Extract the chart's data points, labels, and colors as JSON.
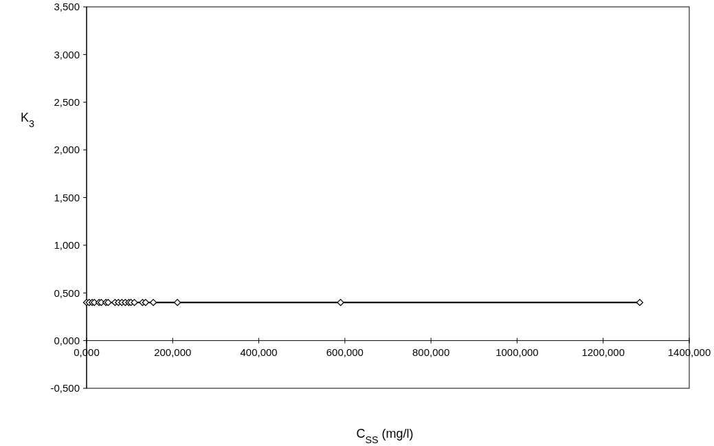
{
  "chart_data": {
    "type": "line",
    "xlabel": "C$_{SS}$ (mg/l)",
    "ylabel": "K$_{3}$",
    "x": [
      0,
      6,
      13,
      18,
      29,
      34,
      45,
      50,
      66,
      74,
      82,
      90,
      98,
      103,
      111,
      130,
      137,
      155,
      211,
      590,
      1285
    ],
    "series": [
      {
        "color": "#000000",
        "values": [
          0.4,
          0.4,
          0.4,
          0.4,
          0.4,
          0.4,
          0.4,
          0.4,
          0.4,
          0.4,
          0.4,
          0.4,
          0.4,
          0.4,
          0.4,
          0.4,
          0.4,
          0.4,
          0.4,
          0.4,
          0.4
        ]
      }
    ],
    "xlim": [
      0,
      1400
    ],
    "ylim": [
      -0.5,
      3.5
    ],
    "xticks": [
      {
        "value": 0,
        "label": "0,000"
      },
      {
        "value": 200,
        "label": "200,000"
      },
      {
        "value": 400,
        "label": "400,000"
      },
      {
        "value": 600,
        "label": "600,000"
      },
      {
        "value": 800,
        "label": "800,000"
      },
      {
        "value": 1000,
        "label": "1000,000"
      },
      {
        "value": 1200,
        "label": "1200,000"
      },
      {
        "value": 1400,
        "label": "1400,000"
      }
    ],
    "yticks": [
      {
        "value": -0.5,
        "label": "-0,500"
      },
      {
        "value": 0,
        "label": "0,000"
      },
      {
        "value": 0.5,
        "label": "0,500"
      },
      {
        "value": 1,
        "label": "1,000"
      },
      {
        "value": 1.5,
        "label": "1,500"
      },
      {
        "value": 2,
        "label": "2,000"
      },
      {
        "value": 2.5,
        "label": "2,500"
      },
      {
        "value": 3,
        "label": "3,000"
      },
      {
        "value": 3.5,
        "label": "3,500"
      }
    ],
    "grid": false,
    "marker": "diamond",
    "line_style": "solid"
  }
}
